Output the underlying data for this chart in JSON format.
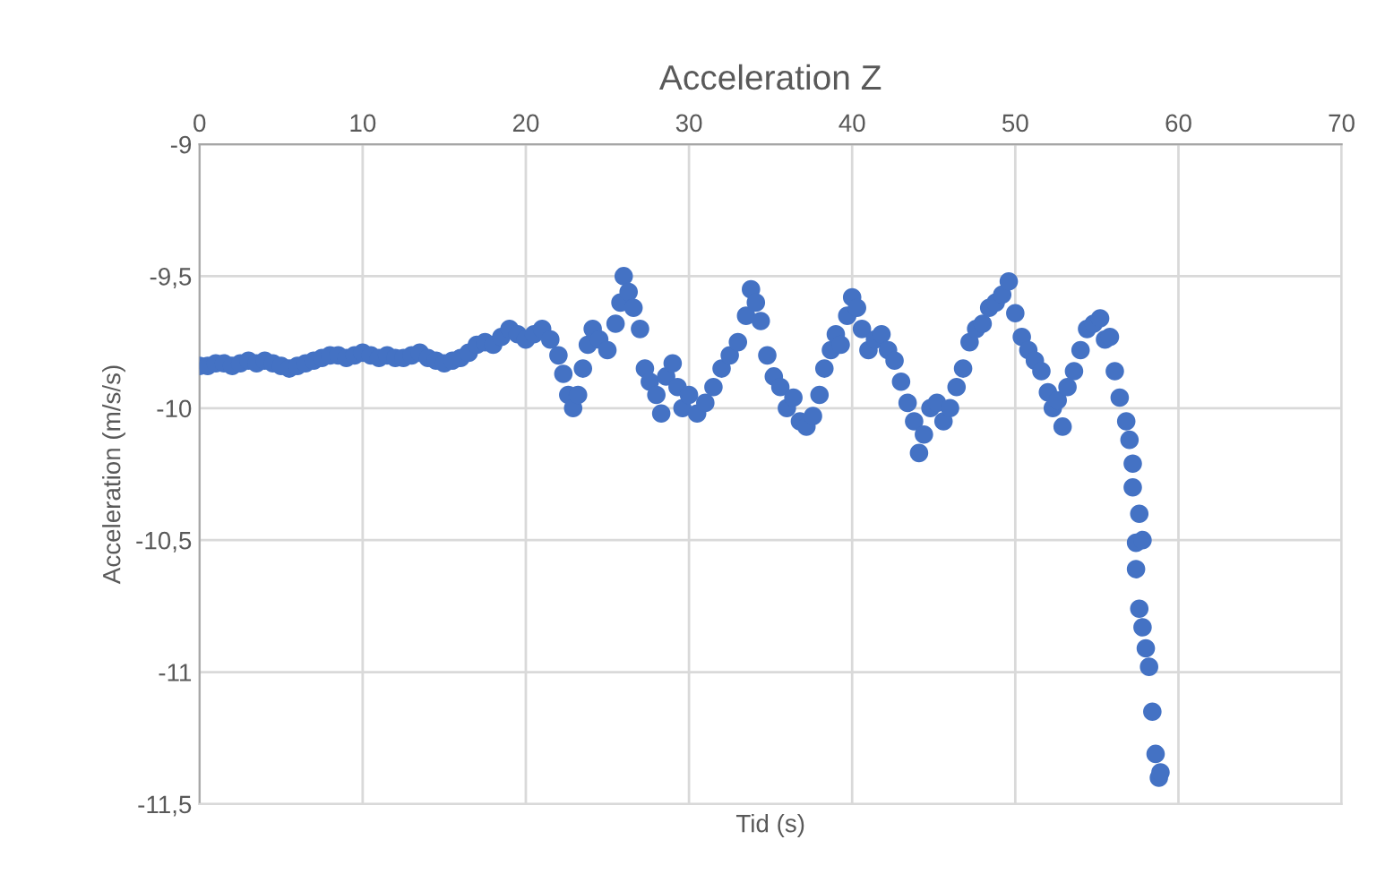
{
  "chart_data": {
    "type": "scatter",
    "title": "Acceleration Z",
    "xlabel": "Tid (s)",
    "ylabel": "Acceleration (m/s/s)",
    "xlim": [
      0,
      70
    ],
    "xticks": [
      0,
      10,
      20,
      30,
      40,
      50,
      60,
      70
    ],
    "ylim": [
      -11.5,
      -9
    ],
    "yticks": [
      {
        "value": -11.5,
        "label": "-11,5"
      },
      {
        "value": -11,
        "label": "-11"
      },
      {
        "value": -10.5,
        "label": "-10,5"
      },
      {
        "value": -10,
        "label": "-10"
      },
      {
        "value": -9.5,
        "label": "-9,5"
      },
      {
        "value": -9,
        "label": "-9"
      }
    ],
    "grid": true,
    "marker": "circle",
    "series": [
      {
        "color": "#4472c4",
        "x": [
          0,
          0.5,
          1,
          1.5,
          2,
          2.5,
          3,
          3.5,
          4,
          4.5,
          5,
          5.5,
          6,
          6.5,
          7,
          7.5,
          8,
          8.5,
          9,
          9.5,
          10,
          10.5,
          11,
          11.5,
          12,
          12.5,
          13,
          13.5,
          14,
          14.5,
          15,
          15.5,
          16,
          16.5,
          17,
          17.5,
          18,
          18.5,
          19,
          19.5,
          20,
          20.5,
          21,
          21.5,
          22,
          22.3,
          22.6,
          22.9,
          23.2,
          23.5,
          23.8,
          24.1,
          24.5,
          25,
          25.5,
          25.8,
          26,
          26.3,
          26.6,
          27,
          27.3,
          27.6,
          28,
          28.3,
          28.6,
          29,
          29.3,
          29.6,
          30,
          30.5,
          31,
          31.5,
          32,
          32.5,
          33,
          33.5,
          33.8,
          34.1,
          34.4,
          34.8,
          35.2,
          35.6,
          36,
          36.4,
          36.8,
          37.2,
          37.6,
          38,
          38.3,
          38.7,
          39,
          39.3,
          39.7,
          40,
          40.3,
          40.6,
          41,
          41.4,
          41.8,
          42.2,
          42.6,
          43,
          43.4,
          43.8,
          44.1,
          44.4,
          44.8,
          45.2,
          45.6,
          46,
          46.4,
          46.8,
          47.2,
          47.6,
          48,
          48.4,
          48.8,
          49.2,
          49.6,
          50,
          50.4,
          50.8,
          51.2,
          51.6,
          52,
          52.3,
          52.6,
          52.9,
          53.2,
          53.6,
          54,
          54.4,
          54.8,
          55.2,
          55.5,
          55.8,
          56.1,
          56.4,
          56.8,
          57,
          57.2,
          57.2,
          57.6,
          57.4,
          57.8,
          57.4,
          57.6,
          57.8,
          58,
          58.2,
          58.4,
          58.6,
          58.8,
          58.9
        ],
        "values": [
          -9.84,
          -9.84,
          -9.83,
          -9.83,
          -9.84,
          -9.83,
          -9.82,
          -9.83,
          -9.82,
          -9.83,
          -9.84,
          -9.85,
          -9.84,
          -9.83,
          -9.82,
          -9.81,
          -9.8,
          -9.8,
          -9.81,
          -9.8,
          -9.79,
          -9.8,
          -9.81,
          -9.8,
          -9.81,
          -9.81,
          -9.8,
          -9.79,
          -9.81,
          -9.82,
          -9.83,
          -9.82,
          -9.81,
          -9.79,
          -9.76,
          -9.75,
          -9.76,
          -9.73,
          -9.7,
          -9.72,
          -9.74,
          -9.72,
          -9.7,
          -9.74,
          -9.8,
          -9.87,
          -9.95,
          -10,
          -9.95,
          -9.85,
          -9.76,
          -9.7,
          -9.74,
          -9.78,
          -9.68,
          -9.6,
          -9.5,
          -9.56,
          -9.62,
          -9.7,
          -9.85,
          -9.9,
          -9.95,
          -10.02,
          -9.88,
          -9.83,
          -9.92,
          -10,
          -9.95,
          -10.02,
          -9.98,
          -9.92,
          -9.85,
          -9.8,
          -9.75,
          -9.65,
          -9.55,
          -9.6,
          -9.67,
          -9.8,
          -9.88,
          -9.92,
          -10,
          -9.96,
          -10.05,
          -10.07,
          -10.03,
          -9.95,
          -9.85,
          -9.78,
          -9.72,
          -9.76,
          -9.65,
          -9.58,
          -9.62,
          -9.7,
          -9.78,
          -9.74,
          -9.72,
          -9.78,
          -9.82,
          -9.9,
          -9.98,
          -10.05,
          -10.17,
          -10.1,
          -10,
          -9.98,
          -10.05,
          -10,
          -9.92,
          -9.85,
          -9.75,
          -9.7,
          -9.68,
          -9.62,
          -9.6,
          -9.57,
          -9.52,
          -9.64,
          -9.73,
          -9.78,
          -9.82,
          -9.86,
          -9.94,
          -10,
          -9.97,
          -10.07,
          -9.92,
          -9.86,
          -9.78,
          -9.7,
          -9.68,
          -9.66,
          -9.74,
          -9.73,
          -9.86,
          -9.96,
          -10.05,
          -10.12,
          -10.21,
          -10.3,
          -10.4,
          -10.51,
          -10.5,
          -10.61,
          -10.76,
          -10.83,
          -10.91,
          -10.98,
          -11.15,
          -11.31,
          -11.4,
          -11.38
        ]
      }
    ]
  }
}
